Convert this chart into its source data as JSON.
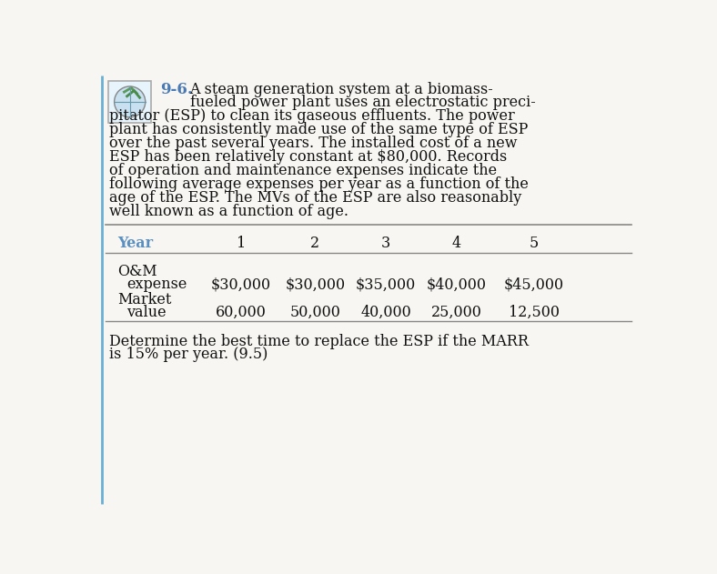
{
  "problem_number": "9-6.",
  "para_line1": "A steam generation system at a biomass-",
  "para_line2": "fueled power plant uses an electrostatic preci-",
  "para_lines_rest": [
    "pitator (ESP) to clean its gaseous effluents. The power",
    "plant has consistently made use of the same type of ESP",
    "over the past several years. The installed cost of a new",
    "ESP has been relatively constant at $80,000. Records",
    "of operation and maintenance expenses indicate the",
    "following average expenses per year as a function of the",
    "age of the ESP. The MVs of the ESP are also reasonably",
    "well known as a function of age."
  ],
  "years": [
    "Year",
    "1",
    "2",
    "3",
    "4",
    "5"
  ],
  "row1_label1": "O&M",
  "row1_label2": "  expense",
  "row1_values": [
    "$30,000",
    "$30,000",
    "$35,000",
    "$40,000",
    "$45,000"
  ],
  "row2_label1": "Market",
  "row2_label2": "  value",
  "row2_values": [
    "60,000",
    "50,000",
    "40,000",
    "25,000",
    "12,500"
  ],
  "footer_line1": "Determine the best time to replace the ESP if the MARR",
  "footer_line2": "is 15% per year. (9.5)",
  "bg_color": "#f7f6f2",
  "border_color": "#6aafd4",
  "text_color": "#111111",
  "year_color": "#5a8fc0",
  "table_line_color": "#888888",
  "problem_num_color": "#4a7ab5",
  "icon_border_color": "#aaaaaa",
  "icon_bg_color": "#e8f4fc"
}
